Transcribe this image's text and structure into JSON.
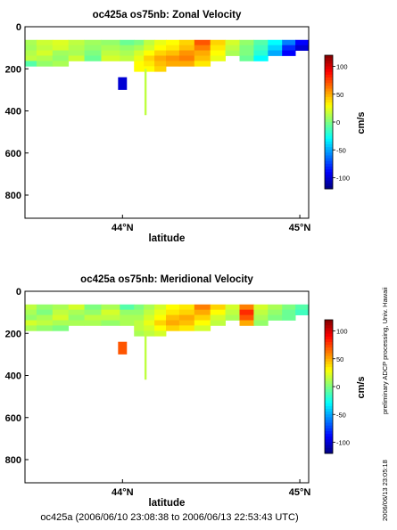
{
  "footer": "oc425a (2006/06/10 23:08:38 to 2006/06/13 22:53:43 UTC)",
  "side_note_top": "preliminary ADCP processing,   Univ. Hawaii",
  "side_note_bottom": "2006/06/13 23:05:18",
  "colorbar": {
    "label": "cm/s",
    "ticks": [
      100,
      50,
      0,
      -50,
      -100
    ],
    "range": [
      -120,
      120
    ],
    "colormap": [
      "#00007f",
      "#0000ff",
      "#007fff",
      "#00ffff",
      "#7fff7f",
      "#ffff00",
      "#ff7f00",
      "#ff0000",
      "#7f0000"
    ]
  },
  "chart_data": [
    {
      "type": "heatmap",
      "title": "oc425a os75nb: Zonal Velocity",
      "xlabel": "latitude",
      "ylabel": "",
      "x_ticks": [
        "44°N",
        "45°N"
      ],
      "x_tick_values": [
        44.0,
        45.0
      ],
      "y_ticks": [
        "0",
        "200",
        "400",
        "600",
        "800"
      ],
      "y_tick_values": [
        0,
        200,
        400,
        600,
        800
      ],
      "xlim": [
        43.45,
        45.05
      ],
      "ylim": [
        910,
        0
      ],
      "units": "cm/s",
      "depth_bins": [
        75,
        100,
        125,
        150,
        175,
        200
      ],
      "columns": [
        {
          "lat": 43.47,
          "u": [
            10,
            8,
            12,
            15,
            -10,
            null
          ]
        },
        {
          "lat": 43.56,
          "u": [
            18,
            15,
            20,
            12,
            5,
            null
          ]
        },
        {
          "lat": 43.65,
          "u": [
            22,
            20,
            8,
            5,
            10,
            null
          ]
        },
        {
          "lat": 43.74,
          "u": [
            15,
            12,
            10,
            18,
            null,
            null
          ]
        },
        {
          "lat": 43.83,
          "u": [
            8,
            5,
            0,
            -5,
            null,
            null
          ]
        },
        {
          "lat": 43.93,
          "u": [
            5,
            10,
            15,
            20,
            null,
            null
          ]
        },
        {
          "lat": 44.04,
          "u": [
            -5,
            5,
            10,
            15,
            null,
            null
          ]
        },
        {
          "lat": 44.09,
          "u": [
            0,
            10,
            20,
            25,
            30,
            30
          ]
        },
        {
          "lat": 44.15,
          "u": [
            15,
            20,
            30,
            40,
            35,
            30
          ]
        },
        {
          "lat": 44.21,
          "u": [
            25,
            30,
            40,
            50,
            45,
            40
          ]
        },
        {
          "lat": 44.28,
          "u": [
            30,
            35,
            45,
            55,
            50,
            null
          ]
        },
        {
          "lat": 44.36,
          "u": [
            40,
            45,
            55,
            60,
            50,
            null
          ]
        },
        {
          "lat": 44.45,
          "u": [
            70,
            60,
            50,
            45,
            35,
            null
          ]
        },
        {
          "lat": 44.54,
          "u": [
            40,
            35,
            30,
            25,
            null,
            null
          ]
        },
        {
          "lat": 44.62,
          "u": [
            20,
            15,
            10,
            null,
            null,
            null
          ]
        },
        {
          "lat": 44.7,
          "u": [
            5,
            0,
            0,
            -5,
            null,
            null
          ]
        },
        {
          "lat": 44.78,
          "u": [
            -10,
            -15,
            -20,
            -30,
            null,
            null
          ]
        },
        {
          "lat": 44.86,
          "u": [
            -30,
            -40,
            -50,
            null,
            null,
            null
          ]
        },
        {
          "lat": 44.94,
          "u": [
            -60,
            -80,
            -90,
            null,
            null,
            null
          ]
        },
        {
          "lat": 45.01,
          "u": [
            -90,
            -100,
            null,
            null,
            null,
            null
          ]
        }
      ],
      "deep_profiles": [
        {
          "lat": 44.0,
          "depth_range": [
            240,
            300
          ],
          "u": -100
        },
        {
          "lat": 44.13,
          "depth_range": [
            200,
            420
          ],
          "u": 15
        }
      ]
    },
    {
      "type": "heatmap",
      "title": "oc425a os75nb: Meridional Velocity",
      "xlabel": "latitude",
      "ylabel": "",
      "x_ticks": [
        "44°N",
        "45°N"
      ],
      "x_tick_values": [
        44.0,
        45.0
      ],
      "y_ticks": [
        "0",
        "200",
        "400",
        "600",
        "800"
      ],
      "y_tick_values": [
        0,
        200,
        400,
        600,
        800
      ],
      "xlim": [
        43.45,
        45.05
      ],
      "ylim": [
        910,
        0
      ],
      "units": "cm/s",
      "depth_bins": [
        75,
        100,
        125,
        150,
        175,
        200
      ],
      "columns": [
        {
          "lat": 43.47,
          "v": [
            15,
            10,
            5,
            20,
            10,
            null
          ]
        },
        {
          "lat": 43.56,
          "v": [
            5,
            0,
            10,
            15,
            5,
            null
          ]
        },
        {
          "lat": 43.65,
          "v": [
            10,
            15,
            20,
            10,
            0,
            null
          ]
        },
        {
          "lat": 43.74,
          "v": [
            20,
            10,
            5,
            10,
            null,
            null
          ]
        },
        {
          "lat": 43.83,
          "v": [
            0,
            5,
            15,
            10,
            null,
            null
          ]
        },
        {
          "lat": 43.93,
          "v": [
            10,
            20,
            15,
            5,
            null,
            null
          ]
        },
        {
          "lat": 44.04,
          "v": [
            -10,
            5,
            10,
            10,
            null,
            null
          ]
        },
        {
          "lat": 44.09,
          "v": [
            0,
            5,
            10,
            15,
            15,
            10
          ]
        },
        {
          "lat": 44.15,
          "v": [
            10,
            15,
            20,
            25,
            20,
            15
          ]
        },
        {
          "lat": 44.21,
          "v": [
            20,
            25,
            30,
            40,
            30,
            20
          ]
        },
        {
          "lat": 44.28,
          "v": [
            30,
            35,
            45,
            50,
            40,
            null
          ]
        },
        {
          "lat": 44.36,
          "v": [
            35,
            40,
            50,
            45,
            35,
            null
          ]
        },
        {
          "lat": 44.45,
          "v": [
            60,
            50,
            40,
            30,
            20,
            null
          ]
        },
        {
          "lat": 44.54,
          "v": [
            40,
            30,
            20,
            15,
            null,
            null
          ]
        },
        {
          "lat": 44.62,
          "v": [
            20,
            15,
            10,
            null,
            null,
            null
          ]
        },
        {
          "lat": 44.7,
          "v": [
            60,
            80,
            70,
            50,
            null,
            null
          ]
        },
        {
          "lat": 44.78,
          "v": [
            20,
            15,
            10,
            5,
            null,
            null
          ]
        },
        {
          "lat": 44.86,
          "v": [
            10,
            5,
            0,
            null,
            null,
            null
          ]
        },
        {
          "lat": 44.94,
          "v": [
            0,
            -5,
            -5,
            null,
            null,
            null
          ]
        },
        {
          "lat": 45.01,
          "v": [
            -10,
            -15,
            null,
            null,
            null,
            null
          ]
        }
      ],
      "deep_profiles": [
        {
          "lat": 44.0,
          "depth_range": [
            240,
            300
          ],
          "v": 70
        },
        {
          "lat": 44.13,
          "depth_range": [
            200,
            420
          ],
          "v": 15
        }
      ]
    }
  ]
}
